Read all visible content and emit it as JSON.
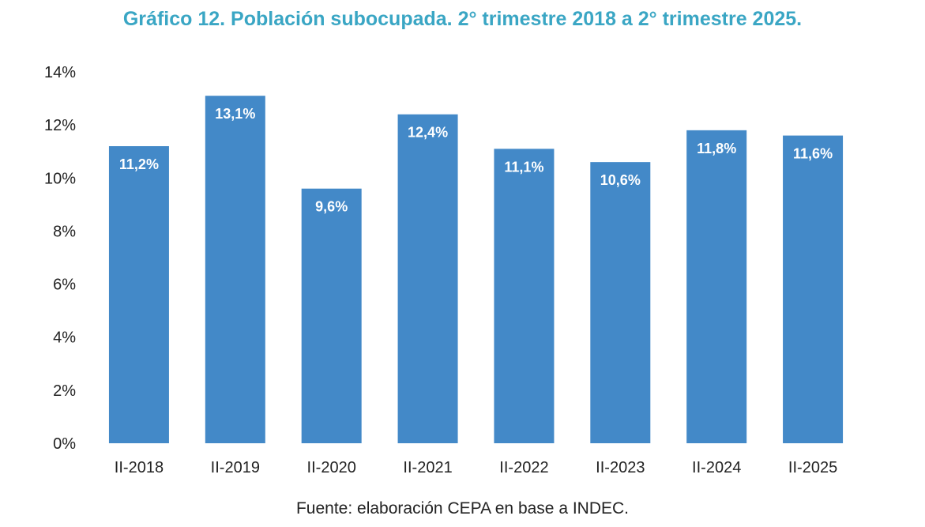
{
  "chart_data": {
    "type": "bar",
    "title": "Gráfico 12. Población subocupada. 2° trimestre 2018 a 2° trimestre 2025.",
    "source": "Fuente: elaboración CEPA en base a INDEC.",
    "categories": [
      "II-2018",
      "II-2019",
      "II-2020",
      "II-2021",
      "II-2022",
      "II-2023",
      "II-2024",
      "II-2025"
    ],
    "values": [
      11.2,
      13.1,
      9.6,
      12.4,
      11.1,
      10.6,
      11.8,
      11.6
    ],
    "data_labels": [
      "11,2%",
      "13,1%",
      "9,6%",
      "12,4%",
      "11,1%",
      "10,6%",
      "11,8%",
      "11,6%"
    ],
    "yticks": [
      0,
      2,
      4,
      6,
      8,
      10,
      12,
      14
    ],
    "ytick_labels": [
      "0%",
      "2%",
      "4%",
      "6%",
      "8%",
      "10%",
      "12%",
      "14%"
    ],
    "ylim": [
      0,
      14
    ],
    "xlabel": "",
    "ylabel": "",
    "grid": false,
    "colors": {
      "bar": "#4389c8",
      "title": "#3aa6c4",
      "axis_text": "#222222",
      "data_label": "#ffffff"
    }
  }
}
